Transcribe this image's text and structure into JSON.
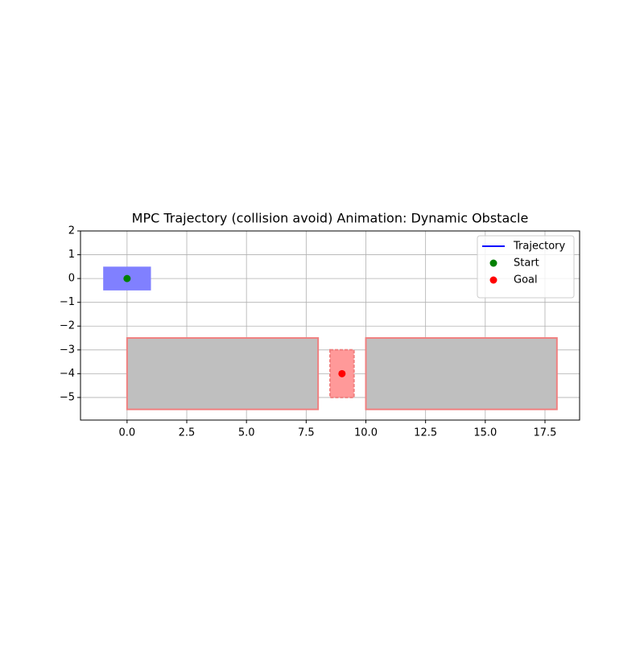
{
  "chart_data": {
    "type": "line",
    "title": "MPC Trajectory (collision avoid) Animation: Dynamic Obstacle",
    "xlim": [
      -1.95,
      18.95
    ],
    "ylim": [
      -5.95,
      2
    ],
    "xticks": [
      {
        "value": 0,
        "label": "0.0"
      },
      2.5,
      {
        "value": 5,
        "label": "5.0"
      },
      7.5,
      {
        "value": 10,
        "label": "10.0"
      },
      12.5,
      {
        "value": 15,
        "label": "15.0"
      },
      17.5
    ],
    "yticks": [
      {
        "value": -5,
        "label": "−5"
      },
      {
        "value": -4,
        "label": "−4"
      },
      {
        "value": -3,
        "label": "−3"
      },
      {
        "value": -2,
        "label": "−2"
      },
      {
        "value": -1,
        "label": "−1"
      },
      0,
      1,
      2
    ],
    "grid": true,
    "legend": "upper right",
    "series": [
      {
        "name": "Trajectory",
        "color": "#0000ff",
        "marker": "line",
        "x": [],
        "values": []
      },
      {
        "name": "Start",
        "color": "#008000",
        "marker": "dot",
        "x": [
          0
        ],
        "values": [
          0
        ]
      },
      {
        "name": "Goal",
        "color": "#ff0000",
        "marker": "dot",
        "x": [
          9
        ],
        "values": [
          -4
        ]
      }
    ],
    "patches": [
      {
        "x": 0,
        "y": -5.5,
        "width": 8,
        "height": 3,
        "fill": "#bfbfbf",
        "edge": "#f08080",
        "dashed": false
      },
      {
        "x": 10,
        "y": -5.5,
        "width": 8,
        "height": 3,
        "fill": "#bfbfbf",
        "edge": "#f08080",
        "dashed": false
      },
      {
        "x": 8.5,
        "y": -5,
        "width": 1,
        "height": 2,
        "fill": "#ff9999",
        "edge": "#f08080",
        "dashed": true
      },
      {
        "x": -1,
        "y": -0.5,
        "width": 2,
        "height": 1,
        "fill": "#8080ff",
        "edge": "none",
        "dashed": false
      }
    ]
  }
}
